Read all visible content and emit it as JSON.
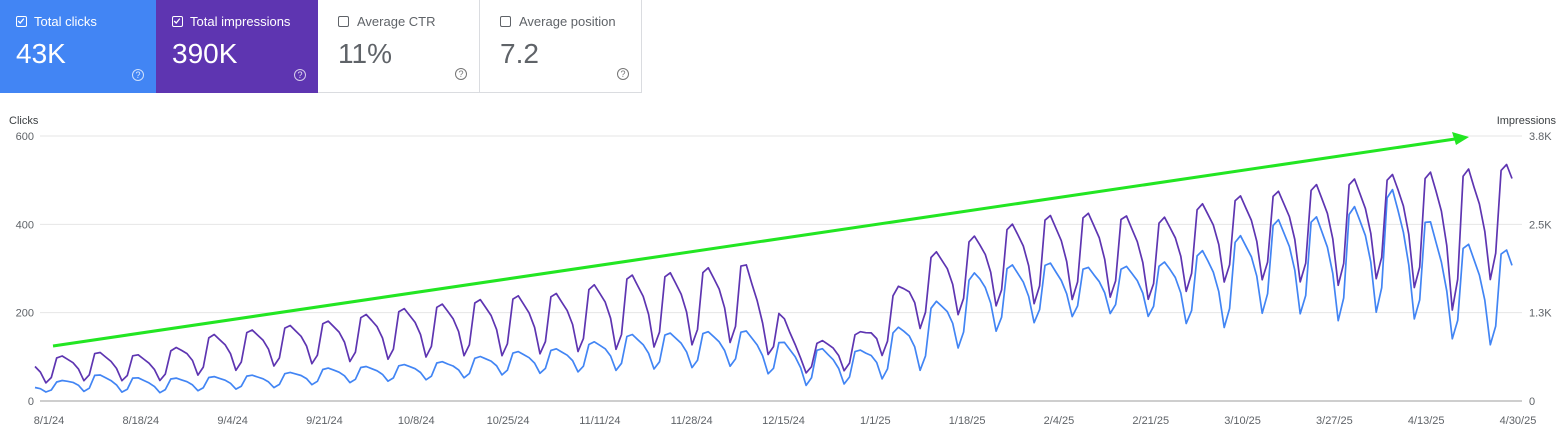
{
  "metrics": [
    {
      "label": "Total clicks",
      "value": "43K",
      "checked": true,
      "color": "#4285f4"
    },
    {
      "label": "Total impressions",
      "value": "390K",
      "checked": true,
      "color": "#5e35b1"
    },
    {
      "label": "Average CTR",
      "value": "11%",
      "checked": false,
      "color": "#ffffff"
    },
    {
      "label": "Average position",
      "value": "7.2",
      "checked": false,
      "color": "#ffffff"
    }
  ],
  "help_glyph": "?",
  "chart_data": {
    "type": "line",
    "left_axis": {
      "title": "Clicks",
      "ticks": [
        "600",
        "400",
        "200",
        "0"
      ],
      "range": [
        0,
        600
      ]
    },
    "right_axis": {
      "title": "Impressions",
      "ticks": [
        "3.8K",
        "2.5K",
        "1.3K",
        "0"
      ],
      "range": [
        0,
        3800
      ]
    },
    "x_tick_labels": [
      "8/1/24",
      "8/18/24",
      "9/4/24",
      "9/21/24",
      "10/8/24",
      "10/25/24",
      "11/11/24",
      "11/28/24",
      "12/15/24",
      "1/1/25",
      "1/18/25",
      "2/4/25",
      "2/21/25",
      "3/10/25",
      "3/27/25",
      "4/13/25",
      "4/30/25"
    ],
    "x_range": [
      "8/1/24",
      "4/30/25"
    ],
    "grid": true,
    "legend": "none",
    "series": [
      {
        "name": "Total clicks",
        "axis": "left",
        "color": "#4285f4",
        "weekly_peaks": [
          35,
          60,
          50,
          55,
          60,
          75,
          80,
          90,
          110,
          120,
          150,
          155,
          160,
          120,
          115,
          200,
          300,
          315,
          300,
          310,
          350,
          410,
          420,
          480,
          360,
          340
        ],
        "weekly_troughs": [
          20,
          22,
          18,
          25,
          30,
          40,
          45,
          50,
          60,
          65,
          70,
          75,
          80,
          35,
          40,
          70,
          150,
          180,
          200,
          190,
          160,
          210,
          180,
          210,
          140,
          120
        ]
      },
      {
        "name": "Total impressions",
        "axis": "right",
        "color": "#5e35b1",
        "weekly_peaks": [
          600,
          700,
          650,
          950,
          1050,
          1150,
          1300,
          1400,
          1500,
          1550,
          1800,
          1850,
          2000,
          800,
          1000,
          2050,
          2400,
          2650,
          2700,
          2600,
          2900,
          3000,
          3150,
          3250,
          3300,
          3400
        ],
        "weekly_troughs": [
          250,
          300,
          280,
          400,
          500,
          550,
          600,
          650,
          650,
          700,
          750,
          800,
          850,
          400,
          450,
          1050,
          1350,
          1400,
          1500,
          1450,
          1700,
          1750,
          1650,
          1800,
          1300,
          2000
        ]
      }
    ]
  },
  "annotation": {
    "type": "trend-arrow",
    "color": "#22e622"
  }
}
